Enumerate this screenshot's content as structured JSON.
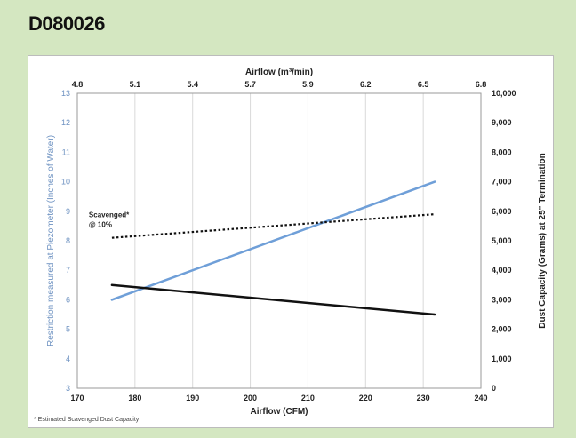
{
  "header": {
    "title": "D080026"
  },
  "footnote": "* Estimated Scavenged Dust Capacity",
  "annotation": {
    "line1": "Scavenged*",
    "line2": "@ 10%"
  },
  "chart_data": {
    "type": "line",
    "title": "",
    "xlabel": "Airflow (CFM)",
    "x_top_label": "Airflow (m³/min)",
    "ylabel": "Restriction measured at Piezometer (Inches of Water)",
    "y2label": "Dust Capacity (Grams) at 25\" Termination",
    "xlim": [
      170,
      240
    ],
    "ylim": [
      3,
      13
    ],
    "y2lim": [
      0,
      10000
    ],
    "x_ticks": [
      "170",
      "180",
      "190",
      "200",
      "210",
      "220",
      "230",
      "240"
    ],
    "x_top_ticks": [
      "4.8",
      "5.1",
      "5.4",
      "5.7",
      "5.9",
      "6.2",
      "6.5",
      "6.8"
    ],
    "y_ticks": [
      "3",
      "4",
      "5",
      "6",
      "7",
      "8",
      "9",
      "10",
      "11",
      "12",
      "13"
    ],
    "y2_ticks": [
      "0",
      "1,000",
      "2,000",
      "3,000",
      "4,000",
      "5,000",
      "6,000",
      "7,000",
      "8,000",
      "9,000",
      "10,000"
    ],
    "grid": "vertical",
    "colors": {
      "restriction": "#6f9fd8",
      "dust": "#111111",
      "scavenged": "#111111",
      "grid": "#d9d9d9"
    },
    "series": [
      {
        "axis": "left",
        "style": "solid",
        "color": "#6f9fd8",
        "x": [
          176,
          232
        ],
        "y": [
          6.0,
          10.0
        ]
      },
      {
        "axis": "right",
        "style": "solid",
        "color": "#111111",
        "x": [
          176,
          232
        ],
        "y": [
          3500,
          2500
        ]
      },
      {
        "name": "Scavenged* @ 10%",
        "axis": "right",
        "style": "dotted",
        "color": "#111111",
        "x": [
          176,
          232
        ],
        "y": [
          5100,
          5900
        ]
      }
    ]
  }
}
